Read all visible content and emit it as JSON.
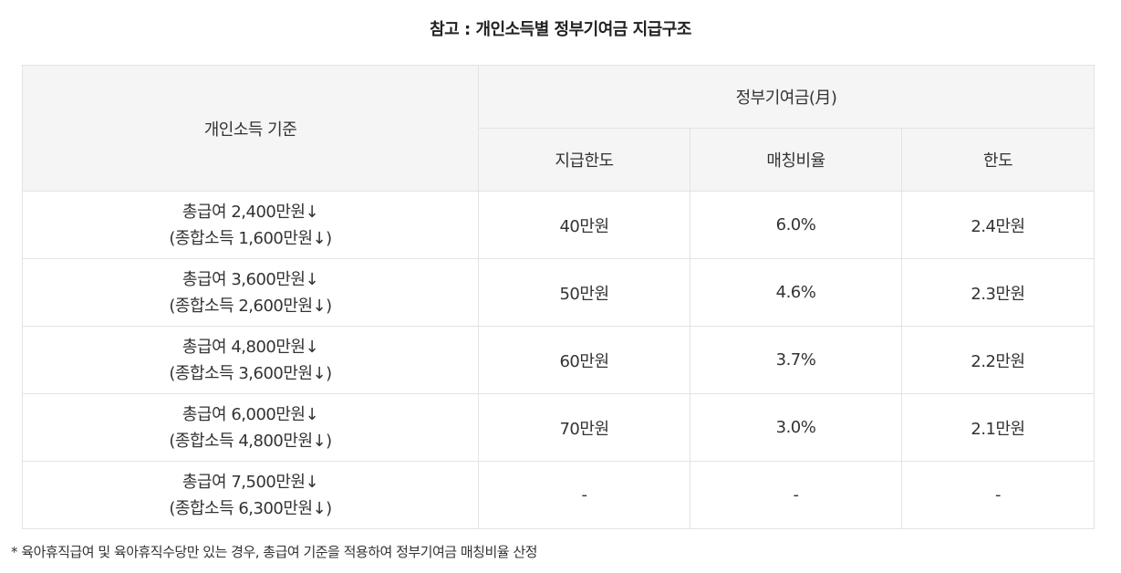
{
  "title": "참고 : 개인소득별 정부기여금 지급구조",
  "table": {
    "headers": {
      "income": "개인소득 기준",
      "contribution_group": "정부기여금(月)",
      "limit": "지급한도",
      "ratio": "매칭비율",
      "cap": "한도"
    },
    "rows": [
      {
        "income_line1": "총급여 2,400만원↓",
        "income_line2": "(종합소득 1,600만원↓)",
        "limit": "40만원",
        "ratio": "6.0%",
        "cap": "2.4만원"
      },
      {
        "income_line1": "총급여 3,600만원↓",
        "income_line2": "(종합소득 2,600만원↓)",
        "limit": "50만원",
        "ratio": "4.6%",
        "cap": "2.3만원"
      },
      {
        "income_line1": "총급여 4,800만원↓",
        "income_line2": "(종합소득 3,600만원↓)",
        "limit": "60만원",
        "ratio": "3.7%",
        "cap": "2.2만원"
      },
      {
        "income_line1": "총급여 6,000만원↓",
        "income_line2": "(종합소득 4,800만원↓)",
        "limit": "70만원",
        "ratio": "3.0%",
        "cap": "2.1만원"
      },
      {
        "income_line1": "총급여 7,500만원↓",
        "income_line2": "(종합소득 6,300만원↓)",
        "limit": "-",
        "ratio": "-",
        "cap": "-"
      }
    ]
  },
  "footnote": "* 육아휴직급여 및 육아휴직수당만 있는 경우, 총급여 기준을 적용하여 정부기여금 매칭비율 산정"
}
